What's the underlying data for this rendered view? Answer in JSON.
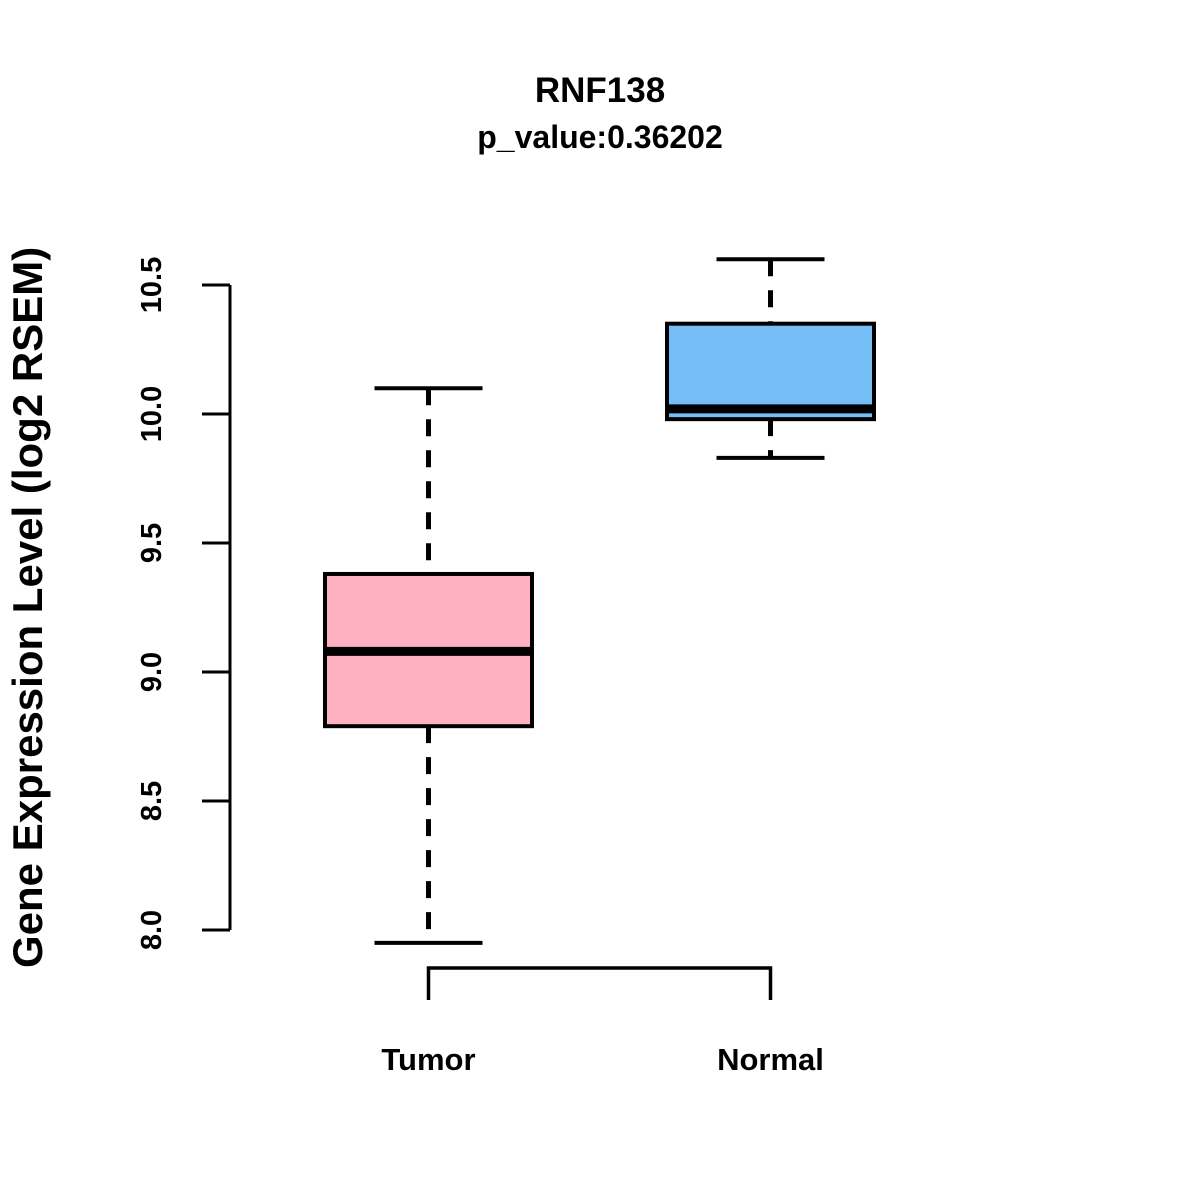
{
  "header": {
    "title": "RNF138",
    "subtitle": "p_value:0.36202"
  },
  "chart_data": {
    "type": "boxplot",
    "title": "RNF138",
    "subtitle": "p_value:0.36202",
    "xlabel": "",
    "ylabel": "Gene Expression Level (log2 RSEM)",
    "categories": [
      "Tumor",
      "Normal"
    ],
    "series": [
      {
        "name": "Tumor",
        "box_color": "#FFB1C1",
        "min": 7.95,
        "q1": 8.79,
        "median": 9.08,
        "q3": 9.38,
        "max": 10.1
      },
      {
        "name": "Normal",
        "box_color": "#74BEF5",
        "min": 9.83,
        "q1": 9.98,
        "median": 10.02,
        "q3": 10.35,
        "max": 10.6
      }
    ],
    "ylim": [
      8.0,
      10.5
    ],
    "yticks": [
      {
        "value": 8.0,
        "label": "8.0"
      },
      {
        "value": 8.5,
        "label": "8.5"
      },
      {
        "value": 9.0,
        "label": "9.0"
      },
      {
        "value": 9.5,
        "label": "9.5"
      },
      {
        "value": 10.0,
        "label": "10.0"
      },
      {
        "value": 10.5,
        "label": "10.5"
      }
    ],
    "grid": false,
    "legend": false,
    "stroke_color": "#000000",
    "background_color": "#FFFFFF"
  }
}
